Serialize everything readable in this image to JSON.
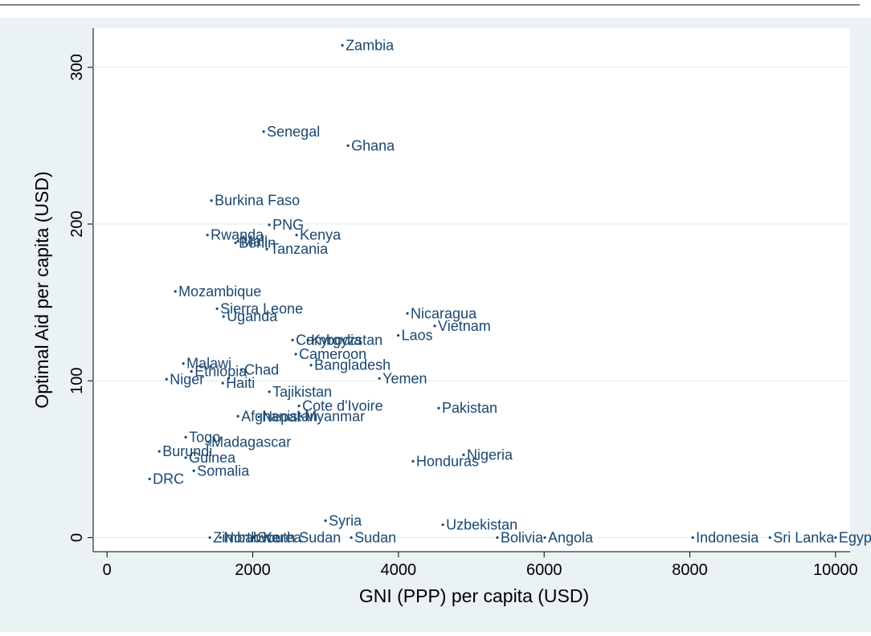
{
  "chart_data": {
    "type": "scatter",
    "x_label": "GNI (PPP) per capita (USD)",
    "y_label": "Optimal Aid per capita (USD)",
    "color": "#1a476f",
    "xlim": [
      -190,
      10200
    ],
    "xticks": [
      0,
      2000,
      4000,
      6000,
      8000,
      10000
    ],
    "ylim": [
      -9,
      325
    ],
    "yticks": [
      0,
      100,
      200,
      300
    ],
    "grid": true,
    "labels": [
      "Zambia",
      "Senegal",
      "Ghana",
      "Burkina Faso",
      "PNG",
      "Kenya",
      "Rwanda",
      "Benin",
      "Mali",
      "Tanzania",
      "Mozambique",
      "Sierra Leone",
      "Uganda",
      "Nicaragua",
      "Vietnam",
      "Laos",
      "Cambodia",
      "Kyrgyzstan",
      "Cameroon",
      "Bangladesh",
      "Malawi",
      "Ethiopia",
      "Chad",
      "Niger",
      "Haiti",
      "Yemen",
      "Tajikistan",
      "Cote d'Ivoire",
      "Pakistan",
      "Afghanistan",
      "Nepal",
      "Myanmar",
      "Togo",
      "Madagascar",
      "Burundi",
      "Guinea",
      "Nigeria",
      "Honduras",
      "Somalia",
      "DRC",
      "Syria",
      "Uzbekistan",
      "Zimbabwe",
      "North Korea",
      "South Sudan",
      "Sudan",
      "Bolivia",
      "Angola",
      "Indonesia",
      "Sri Lanka",
      "Egypt"
    ],
    "x": [
      3230,
      2150,
      3308,
      1433,
      2227,
      2602,
      1378,
      1764,
      1797,
      2194,
      937,
      1510,
      1599,
      4123,
      4498,
      3997,
      2547,
      2756,
      2591,
      2800,
      1047,
      1158,
      1841,
      816,
      1588,
      3738,
      2227,
      2635,
      4553,
      1797,
      2084,
      2668,
      1080,
      1389,
      717,
      1080,
      4895,
      4200,
      1191,
      584,
      2999,
      4609,
      1411,
      1555,
      2018,
      3352,
      5358,
      6009,
      8040,
      9100,
      10000
    ],
    "values": [
      314,
      259,
      250,
      215,
      199.5,
      193,
      193,
      188,
      189,
      184,
      157,
      146,
      141,
      143,
      135,
      129,
      126,
      126,
      117,
      110,
      111,
      106,
      107,
      101,
      98.5,
      101.5,
      93,
      84,
      82.6,
      77.4,
      77,
      77.4,
      64,
      61,
      55,
      51,
      52.8,
      48.7,
      42.6,
      37.4,
      10.8,
      8.2,
      0,
      0,
      0,
      0,
      0,
      0,
      0,
      0,
      0
    ]
  }
}
